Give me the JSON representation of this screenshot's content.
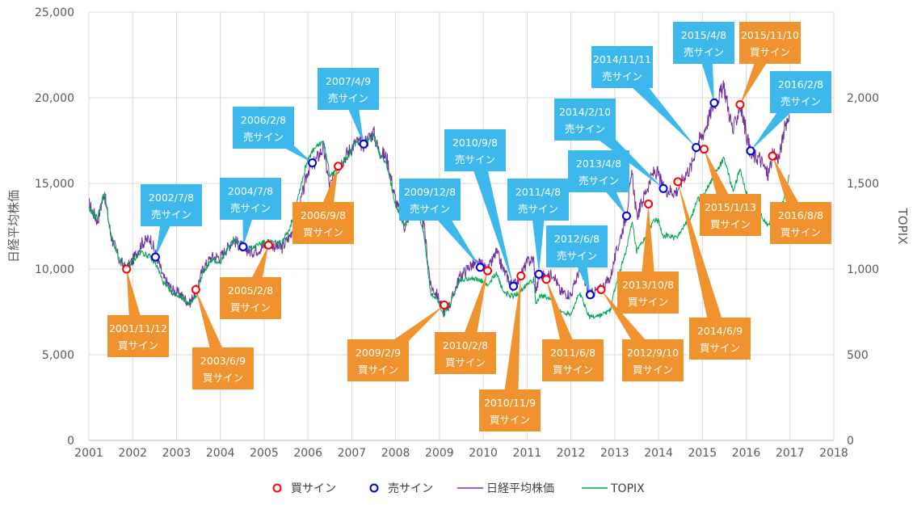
{
  "colors": {
    "nikkei": "#7030A0",
    "topix": "#00A651",
    "buy": "#FF0000",
    "sell": "#0000E0",
    "buy_callout": "#F0922E",
    "sell_callout": "#3DB8EC",
    "grid": "#D9D9D9"
  },
  "chart_data": {
    "type": "line",
    "title": "",
    "x_axis": {
      "ticks": [
        "2001",
        "2002",
        "2003",
        "2004",
        "2005",
        "2006",
        "2007",
        "2008",
        "2009",
        "2010",
        "2011",
        "2012",
        "2013",
        "2014",
        "2015",
        "2016",
        "2017",
        "2018"
      ],
      "range": [
        2001,
        2018
      ]
    },
    "y_left": {
      "label": "日経平均株価",
      "range": [
        0,
        25000
      ],
      "ticks": [
        "0",
        "5,000",
        "10,000",
        "15,000",
        "20,000",
        "25,000"
      ]
    },
    "y_right": {
      "label": "TOPIX",
      "range": [
        0,
        2500
      ],
      "ticks": [
        "0",
        "500",
        "1,000",
        "1,500",
        "2,000"
      ]
    },
    "grid": true,
    "legend": {
      "placement": "bottom",
      "items": [
        "買サイン",
        "売サイン",
        "日経平均株価",
        "TOPIX"
      ]
    },
    "series": [
      {
        "name": "日経平均株価",
        "axis": "left",
        "points": [
          [
            2001.0,
            13800
          ],
          [
            2001.2,
            12800
          ],
          [
            2001.35,
            14500
          ],
          [
            2001.5,
            12000
          ],
          [
            2001.7,
            10500
          ],
          [
            2001.85,
            10000
          ],
          [
            2002.0,
            10500
          ],
          [
            2002.2,
            11500
          ],
          [
            2002.4,
            11800
          ],
          [
            2002.55,
            10700
          ],
          [
            2002.7,
            9500
          ],
          [
            2002.9,
            8800
          ],
          [
            2003.1,
            8500
          ],
          [
            2003.3,
            8000
          ],
          [
            2003.45,
            8800
          ],
          [
            2003.6,
            10000
          ],
          [
            2003.8,
            10700
          ],
          [
            2004.0,
            10700
          ],
          [
            2004.3,
            11700
          ],
          [
            2004.5,
            11300
          ],
          [
            2004.7,
            11000
          ],
          [
            2004.9,
            11200
          ],
          [
            2005.1,
            11500
          ],
          [
            2005.4,
            11200
          ],
          [
            2005.6,
            12000
          ],
          [
            2005.8,
            13500
          ],
          [
            2006.0,
            15800
          ],
          [
            2006.15,
            16200
          ],
          [
            2006.35,
            17100
          ],
          [
            2006.5,
            14800
          ],
          [
            2006.7,
            16000
          ],
          [
            2006.9,
            16800
          ],
          [
            2007.1,
            17400
          ],
          [
            2007.27,
            17300
          ],
          [
            2007.5,
            18000
          ],
          [
            2007.6,
            17000
          ],
          [
            2007.8,
            16500
          ],
          [
            2008.0,
            14000
          ],
          [
            2008.2,
            12500
          ],
          [
            2008.45,
            14000
          ],
          [
            2008.65,
            12500
          ],
          [
            2008.8,
            9000
          ],
          [
            2008.95,
            8500
          ],
          [
            2009.1,
            7500
          ],
          [
            2009.25,
            8000
          ],
          [
            2009.45,
            9500
          ],
          [
            2009.7,
            10200
          ],
          [
            2009.95,
            10300
          ],
          [
            2010.1,
            9900
          ],
          [
            2010.3,
            11000
          ],
          [
            2010.45,
            10000
          ],
          [
            2010.67,
            9000
          ],
          [
            2010.85,
            9600
          ],
          [
            2011.0,
            10400
          ],
          [
            2011.15,
            10600
          ],
          [
            2011.2,
            8700
          ],
          [
            2011.3,
            9700
          ],
          [
            2011.45,
            9500
          ],
          [
            2011.6,
            9800
          ],
          [
            2011.75,
            8700
          ],
          [
            2012.0,
            8500
          ],
          [
            2012.2,
            10000
          ],
          [
            2012.43,
            8500
          ],
          [
            2012.7,
            8900
          ],
          [
            2012.9,
            9500
          ],
          [
            2013.0,
            10600
          ],
          [
            2013.25,
            13000
          ],
          [
            2013.4,
            15600
          ],
          [
            2013.5,
            13000
          ],
          [
            2013.7,
            14500
          ],
          [
            2013.9,
            15700
          ],
          [
            2014.0,
            15500
          ],
          [
            2014.1,
            14700
          ],
          [
            2014.4,
            14500
          ],
          [
            2014.6,
            15500
          ],
          [
            2014.75,
            16000
          ],
          [
            2014.87,
            17300
          ],
          [
            2015.0,
            17800
          ],
          [
            2015.27,
            19700
          ],
          [
            2015.5,
            20600
          ],
          [
            2015.7,
            18000
          ],
          [
            2015.86,
            19600
          ],
          [
            2016.0,
            18000
          ],
          [
            2016.11,
            16600
          ],
          [
            2016.3,
            16500
          ],
          [
            2016.5,
            15500
          ],
          [
            2016.6,
            16600
          ],
          [
            2016.75,
            16500
          ],
          [
            2016.9,
            18500
          ],
          [
            2016.98,
            19000
          ]
        ]
      },
      {
        "name": "TOPIX",
        "axis": "right",
        "points": [
          [
            2001.0,
            1350
          ],
          [
            2001.2,
            1300
          ],
          [
            2001.35,
            1450
          ],
          [
            2001.5,
            1200
          ],
          [
            2001.7,
            1050
          ],
          [
            2001.85,
            1000
          ],
          [
            2002.0,
            1050
          ],
          [
            2002.2,
            1100
          ],
          [
            2002.4,
            1070
          ],
          [
            2002.55,
            1020
          ],
          [
            2002.7,
            920
          ],
          [
            2002.9,
            860
          ],
          [
            2003.1,
            840
          ],
          [
            2003.3,
            790
          ],
          [
            2003.45,
            840
          ],
          [
            2003.6,
            980
          ],
          [
            2003.8,
            1050
          ],
          [
            2004.0,
            1040
          ],
          [
            2004.3,
            1180
          ],
          [
            2004.5,
            1140
          ],
          [
            2004.7,
            1120
          ],
          [
            2004.9,
            1150
          ],
          [
            2005.1,
            1160
          ],
          [
            2005.4,
            1150
          ],
          [
            2005.6,
            1250
          ],
          [
            2005.8,
            1450
          ],
          [
            2006.0,
            1650
          ],
          [
            2006.15,
            1700
          ],
          [
            2006.35,
            1750
          ],
          [
            2006.5,
            1550
          ],
          [
            2006.7,
            1600
          ],
          [
            2006.9,
            1650
          ],
          [
            2007.1,
            1750
          ],
          [
            2007.27,
            1720
          ],
          [
            2007.5,
            1780
          ],
          [
            2007.6,
            1700
          ],
          [
            2007.8,
            1600
          ],
          [
            2008.0,
            1380
          ],
          [
            2008.2,
            1250
          ],
          [
            2008.45,
            1380
          ],
          [
            2008.65,
            1200
          ],
          [
            2008.8,
            850
          ],
          [
            2008.95,
            830
          ],
          [
            2009.1,
            730
          ],
          [
            2009.25,
            800
          ],
          [
            2009.45,
            930
          ],
          [
            2009.7,
            950
          ],
          [
            2009.95,
            930
          ],
          [
            2010.1,
            900
          ],
          [
            2010.3,
            980
          ],
          [
            2010.45,
            870
          ],
          [
            2010.67,
            840
          ],
          [
            2010.85,
            870
          ],
          [
            2011.0,
            920
          ],
          [
            2011.15,
            940
          ],
          [
            2011.2,
            800
          ],
          [
            2011.3,
            850
          ],
          [
            2011.45,
            830
          ],
          [
            2011.6,
            820
          ],
          [
            2011.75,
            750
          ],
          [
            2012.0,
            740
          ],
          [
            2012.2,
            860
          ],
          [
            2012.43,
            720
          ],
          [
            2012.7,
            730
          ],
          [
            2012.9,
            760
          ],
          [
            2013.0,
            880
          ],
          [
            2013.25,
            1100
          ],
          [
            2013.4,
            1270
          ],
          [
            2013.5,
            1100
          ],
          [
            2013.7,
            1180
          ],
          [
            2013.9,
            1290
          ],
          [
            2014.0,
            1280
          ],
          [
            2014.1,
            1200
          ],
          [
            2014.4,
            1180
          ],
          [
            2014.6,
            1260
          ],
          [
            2014.75,
            1300
          ],
          [
            2014.87,
            1400
          ],
          [
            2015.0,
            1420
          ],
          [
            2015.27,
            1550
          ],
          [
            2015.5,
            1650
          ],
          [
            2015.7,
            1450
          ],
          [
            2015.86,
            1580
          ],
          [
            2016.0,
            1450
          ],
          [
            2016.11,
            1350
          ],
          [
            2016.3,
            1330
          ],
          [
            2016.5,
            1250
          ],
          [
            2016.6,
            1320
          ],
          [
            2016.75,
            1330
          ],
          [
            2016.9,
            1450
          ],
          [
            2016.98,
            1550
          ]
        ]
      }
    ],
    "signals": [
      {
        "type": "buy",
        "date": "2001/11/12",
        "x": 2001.86,
        "y": 10000
      },
      {
        "type": "sell",
        "date": "2002/7/8",
        "x": 2002.52,
        "y": 10700
      },
      {
        "type": "buy",
        "date": "2003/6/9",
        "x": 2003.44,
        "y": 8800
      },
      {
        "type": "sell",
        "date": "2004/7/8",
        "x": 2004.52,
        "y": 11300
      },
      {
        "type": "buy",
        "date": "2005/2/8",
        "x": 2005.1,
        "y": 11400
      },
      {
        "type": "sell",
        "date": "2006/2/8",
        "x": 2006.1,
        "y": 16200
      },
      {
        "type": "buy",
        "date": "2006/9/8",
        "x": 2006.69,
        "y": 16000
      },
      {
        "type": "sell",
        "date": "2007/4/9",
        "x": 2007.27,
        "y": 17300
      },
      {
        "type": "buy",
        "date": "2009/2/9",
        "x": 2009.11,
        "y": 7900
      },
      {
        "type": "sell",
        "date": "2009/12/8",
        "x": 2009.93,
        "y": 10100
      },
      {
        "type": "buy",
        "date": "2010/2/8",
        "x": 2010.1,
        "y": 9900
      },
      {
        "type": "sell",
        "date": "2010/9/8",
        "x": 2010.69,
        "y": 9000
      },
      {
        "type": "buy",
        "date": "2010/11/9",
        "x": 2010.86,
        "y": 9600
      },
      {
        "type": "sell",
        "date": "2011/4/8",
        "x": 2011.27,
        "y": 9700
      },
      {
        "type": "buy",
        "date": "2011/6/8",
        "x": 2011.44,
        "y": 9400
      },
      {
        "type": "sell",
        "date": "2012/6/8",
        "x": 2012.44,
        "y": 8500
      },
      {
        "type": "buy",
        "date": "2012/9/10",
        "x": 2012.69,
        "y": 8800
      },
      {
        "type": "sell",
        "date": "2013/4/8",
        "x": 2013.27,
        "y": 13100
      },
      {
        "type": "buy",
        "date": "2013/10/8",
        "x": 2013.77,
        "y": 13800
      },
      {
        "type": "sell",
        "date": "2014/2/10",
        "x": 2014.11,
        "y": 14700
      },
      {
        "type": "buy",
        "date": "2014/6/9",
        "x": 2014.44,
        "y": 15100
      },
      {
        "type": "sell",
        "date": "2014/11/11",
        "x": 2014.86,
        "y": 17100
      },
      {
        "type": "buy",
        "date": "2015/1/13",
        "x": 2015.04,
        "y": 17000
      },
      {
        "type": "sell",
        "date": "2015/4/8",
        "x": 2015.27,
        "y": 19700
      },
      {
        "type": "buy",
        "date": "2015/11/10",
        "x": 2015.86,
        "y": 19600
      },
      {
        "type": "sell",
        "date": "2016/2/8",
        "x": 2016.1,
        "y": 16900
      },
      {
        "type": "buy",
        "date": "2016/8/8",
        "x": 2016.6,
        "y": 16600
      }
    ],
    "callout_labels": {
      "buy": "買サイン",
      "sell": "売サイン"
    }
  }
}
